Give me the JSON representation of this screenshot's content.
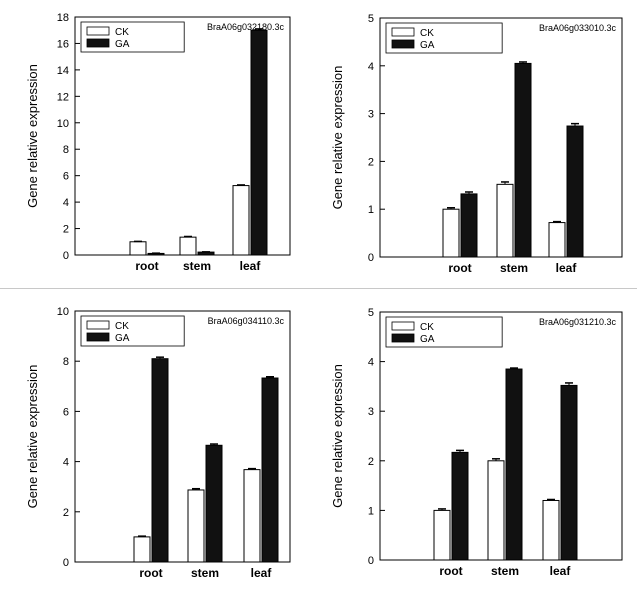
{
  "chart_data": [
    {
      "type": "bar",
      "title": "BraA06g032180.3c",
      "categories": [
        "root",
        "stem",
        "leaf"
      ],
      "series": [
        {
          "name": "CK",
          "values": [
            1.0,
            1.35,
            5.25
          ],
          "errors": [
            0.03,
            0.05,
            0.05
          ]
        },
        {
          "name": "GA",
          "values": [
            0.12,
            0.22,
            17.0
          ],
          "errors": [
            0.02,
            0.02,
            0.1
          ]
        }
      ],
      "xlabel": "",
      "ylabel": "Gene relative expression",
      "ylim": [
        0,
        18
      ],
      "yticks": [
        0,
        2,
        4,
        6,
        8,
        10,
        12,
        14,
        16,
        18
      ],
      "legend": "top-left"
    },
    {
      "type": "bar",
      "title": "BraA06g033010.3c",
      "categories": [
        "root",
        "stem",
        "leaf"
      ],
      "series": [
        {
          "name": "CK",
          "values": [
            1.0,
            1.52,
            0.72
          ],
          "errors": [
            0.03,
            0.05,
            0.02
          ]
        },
        {
          "name": "GA",
          "values": [
            1.32,
            4.05,
            2.74
          ],
          "errors": [
            0.04,
            0.03,
            0.05
          ]
        }
      ],
      "xlabel": "",
      "ylabel": "Gene relative expression",
      "ylim": [
        0,
        5
      ],
      "yticks": [
        0,
        1,
        2,
        3,
        4,
        5
      ],
      "legend": "top-left"
    },
    {
      "type": "bar",
      "title": "BraA06g034110.3c",
      "categories": [
        "root",
        "stem",
        "leaf"
      ],
      "series": [
        {
          "name": "CK",
          "values": [
            1.0,
            2.87,
            3.68
          ],
          "errors": [
            0.03,
            0.05,
            0.04
          ]
        },
        {
          "name": "GA",
          "values": [
            8.1,
            4.65,
            7.33
          ],
          "errors": [
            0.06,
            0.05,
            0.05
          ]
        }
      ],
      "xlabel": "",
      "ylabel": "Gene relative expression",
      "ylim": [
        0,
        10
      ],
      "yticks": [
        0,
        2,
        4,
        6,
        8,
        10
      ],
      "legend": "top-left"
    },
    {
      "type": "bar",
      "title": "BraA06g031210.3c",
      "categories": [
        "root",
        "stem",
        "leaf"
      ],
      "series": [
        {
          "name": "CK",
          "values": [
            1.0,
            2.0,
            1.2
          ],
          "errors": [
            0.03,
            0.04,
            0.02
          ]
        },
        {
          "name": "GA",
          "values": [
            2.17,
            3.85,
            3.52
          ],
          "errors": [
            0.04,
            0.02,
            0.05
          ]
        }
      ],
      "xlabel": "",
      "ylabel": "Gene relative expression",
      "ylim": [
        0,
        5
      ],
      "yticks": [
        0,
        1,
        2,
        3,
        4,
        5
      ],
      "legend": "top-left"
    }
  ],
  "colors": {
    "CK": "#ffffff",
    "GA": "#111111",
    "axis": "#000000"
  }
}
